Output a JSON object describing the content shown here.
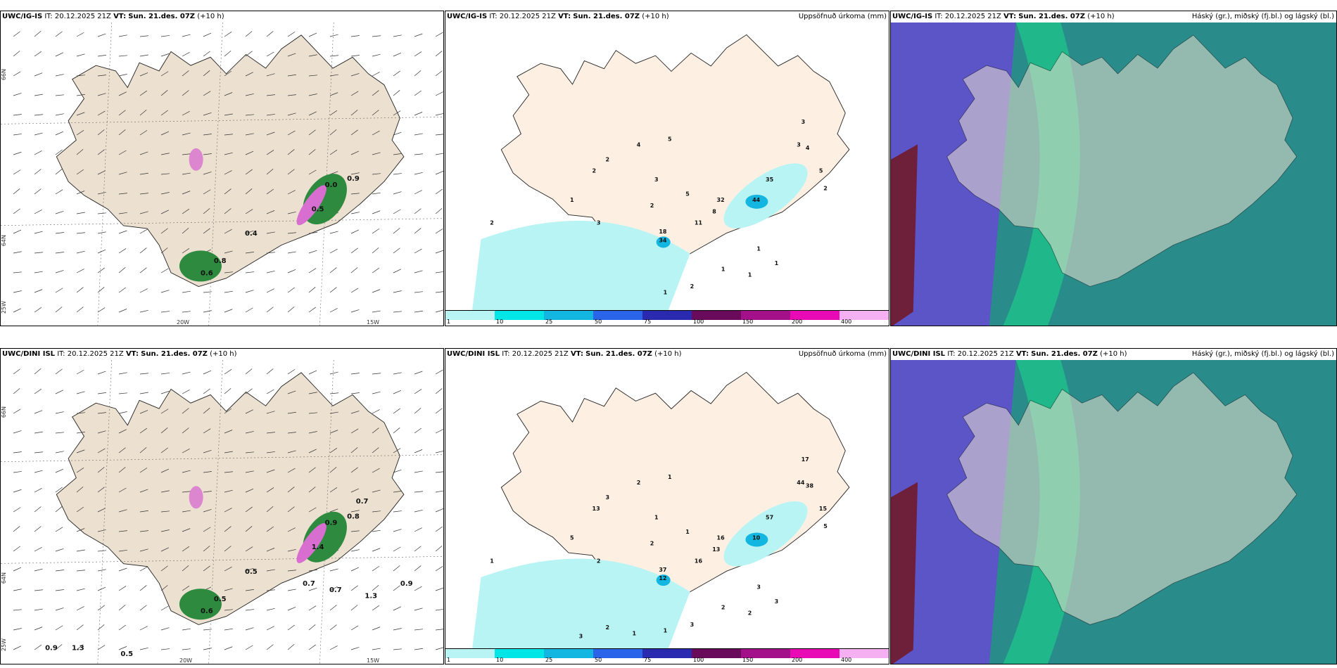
{
  "colors": {
    "land": "#ece0d0",
    "land_light": "#fdf0e3",
    "sea": "#ffffff",
    "precip_green": "#2d8a3e",
    "precip_light": "#b5e8c4",
    "snow_pink": "#d86fd0",
    "cloud_high": "#2a8c8a",
    "cloud_mid": "#1fc08a",
    "cloud_low": "#5b55c8",
    "cloud_dark": "#6e1f3a"
  },
  "rows": [
    {
      "model": "UWC/IG-IS",
      "it": "IT: 20.12.2025 21Z",
      "vt_label": "VT:",
      "vt": "Sun. 21.des. 07Z",
      "lead": "(+10 h)",
      "wind_values": [
        "0.6",
        "0.8",
        "0.4",
        "0.5",
        "0.0",
        "0.9"
      ],
      "precip_values": [
        "2",
        "3",
        "2",
        "2",
        "1",
        "4",
        "3",
        "5",
        "2",
        "5",
        "32",
        "8",
        "11",
        "18",
        "34",
        "44",
        "35",
        "3",
        "4",
        "3",
        "5",
        "2",
        "1",
        "1",
        "1",
        "1",
        "2",
        "1"
      ],
      "lon_labels": [
        "20W",
        "15W",
        "25W"
      ],
      "lat_labels": [
        "66N",
        "64N"
      ]
    },
    {
      "model": "UWC/DINI ISL",
      "it": "IT: 20.12.2025 21Z",
      "vt_label": "VT:",
      "vt": "Sun. 21.des. 07Z",
      "lead": "(+10 h)",
      "wind_values": [
        "0.6",
        "0.5",
        "0.5",
        "1.4",
        "0.9",
        "0.8",
        "0.7",
        "0.9",
        "1.3",
        "0.5",
        "0.7",
        "0.7",
        "1.3",
        "0.9"
      ],
      "precip_values": [
        "1",
        "2",
        "13",
        "3",
        "5",
        "2",
        "1",
        "1",
        "2",
        "1",
        "16",
        "13",
        "16",
        "37",
        "12",
        "10",
        "57",
        "44",
        "38",
        "17",
        "15",
        "5",
        "3",
        "3",
        "2",
        "2",
        "3",
        "1",
        "1",
        "2",
        "3"
      ],
      "lon_labels": [
        "20W",
        "15W",
        "25W"
      ],
      "lat_labels": [
        "66N",
        "64N"
      ]
    }
  ],
  "precip_title": "Uppsöfnuð úrkoma (mm)",
  "cloud_title": "Háský (gr.), miðský (fj.bl.) og lágský (bl.)",
  "colorbar": {
    "ticks": [
      "1",
      "10",
      "25",
      "50",
      "75",
      "100",
      "150",
      "200",
      "400"
    ],
    "colors": [
      "#b8f4f4",
      "#00e6e6",
      "#12b6e0",
      "#2a64e8",
      "#2a2ab0",
      "#6a0a5a",
      "#a3108a",
      "#e80ab4",
      "#f4b0f0"
    ]
  }
}
